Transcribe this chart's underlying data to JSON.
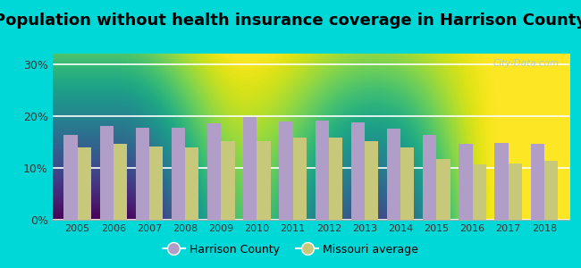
{
  "title": "Population without health insurance coverage in Harrison County",
  "years": [
    2005,
    2006,
    2007,
    2008,
    2009,
    2010,
    2011,
    2012,
    2013,
    2014,
    2015,
    2016,
    2017,
    2018
  ],
  "harrison_county": [
    16.3,
    18.1,
    17.8,
    17.7,
    18.5,
    19.7,
    18.9,
    19.1,
    18.7,
    17.6,
    16.4,
    14.7,
    14.8,
    14.6
  ],
  "missouri_average": [
    13.9,
    14.7,
    14.1,
    13.9,
    15.2,
    15.1,
    15.9,
    15.8,
    15.1,
    13.9,
    11.7,
    10.7,
    10.9,
    11.3
  ],
  "harrison_color": "#b09ec9",
  "missouri_color": "#c8c87a",
  "background_outer": "#00d8d8",
  "yticks": [
    0,
    10,
    20,
    30
  ],
  "ylim": [
    0,
    32
  ],
  "bar_width": 0.38,
  "legend_harrison": "Harrison County",
  "legend_missouri": "Missouri average",
  "watermark": "City-Data.com",
  "title_fontsize": 13,
  "tick_fontsize": 8
}
